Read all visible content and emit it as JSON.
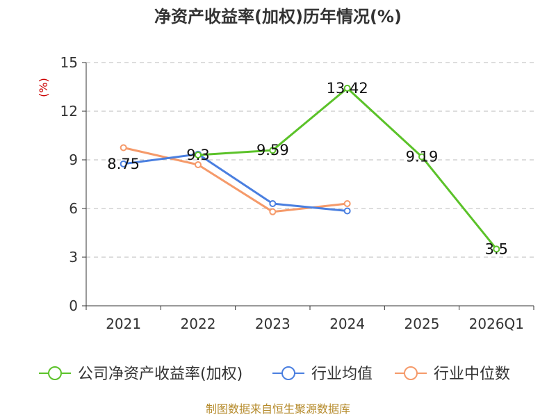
{
  "chart_data": {
    "type": "line",
    "title": "净资产收益率(加权)历年情况(%)",
    "ylabel": "(%)",
    "xlabel": "",
    "categories": [
      "2021",
      "2022",
      "2023",
      "2024",
      "2025",
      "2026Q1"
    ],
    "ylim": [
      0,
      15
    ],
    "yticks": [
      0,
      3,
      6,
      9,
      12,
      15
    ],
    "grid": true,
    "legend_position": "bottom",
    "series": [
      {
        "name": "公司净资产收益率(加权)",
        "color": "#5bc229",
        "values": [
          null,
          9.3,
          9.59,
          13.42,
          9.19,
          3.5
        ],
        "labels": [
          "",
          "9.3",
          "9.59",
          "13.42",
          "9.19",
          "3.5"
        ]
      },
      {
        "name": "行业均值",
        "color": "#4a7fe0",
        "values": [
          8.75,
          9.35,
          6.3,
          5.85,
          null,
          null
        ],
        "labels": [
          "8.75",
          "",
          "",
          "",
          "",
          ""
        ]
      },
      {
        "name": "行业中位数",
        "color": "#f59a6a",
        "values": [
          9.75,
          8.7,
          5.8,
          6.3,
          null,
          null
        ],
        "labels": [
          "",
          "",
          "",
          "",
          "",
          ""
        ]
      }
    ],
    "source": "制图数据来自恒生聚源数据库"
  }
}
